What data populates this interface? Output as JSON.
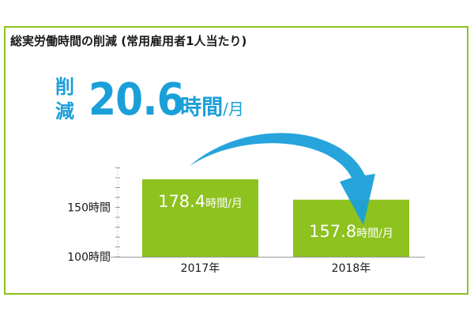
{
  "colors": {
    "bar": "#8dc21f",
    "arrow": "#1a9fd9",
    "frame": "#8dc21f",
    "axis": "#9a9a9a",
    "value_text": "#ffffff"
  },
  "reduction": {
    "label": "削減",
    "value": "20.6",
    "unit": "時間",
    "per": "/月"
  },
  "chart_data": {
    "type": "bar",
    "title": "総実労働時間の削減 (常用雇用者1人当たり)",
    "categories": [
      "2017年",
      "2018年"
    ],
    "values": [
      178.4,
      157.8
    ],
    "value_unit": "時間/月",
    "ylim": [
      100,
      190
    ],
    "ytick_values": [
      100,
      150
    ],
    "ytick_labels": [
      "100時間",
      "150時間"
    ],
    "minor_tick_step": 10,
    "grid": false,
    "legend": "none",
    "xlabel": "",
    "ylabel": ""
  }
}
